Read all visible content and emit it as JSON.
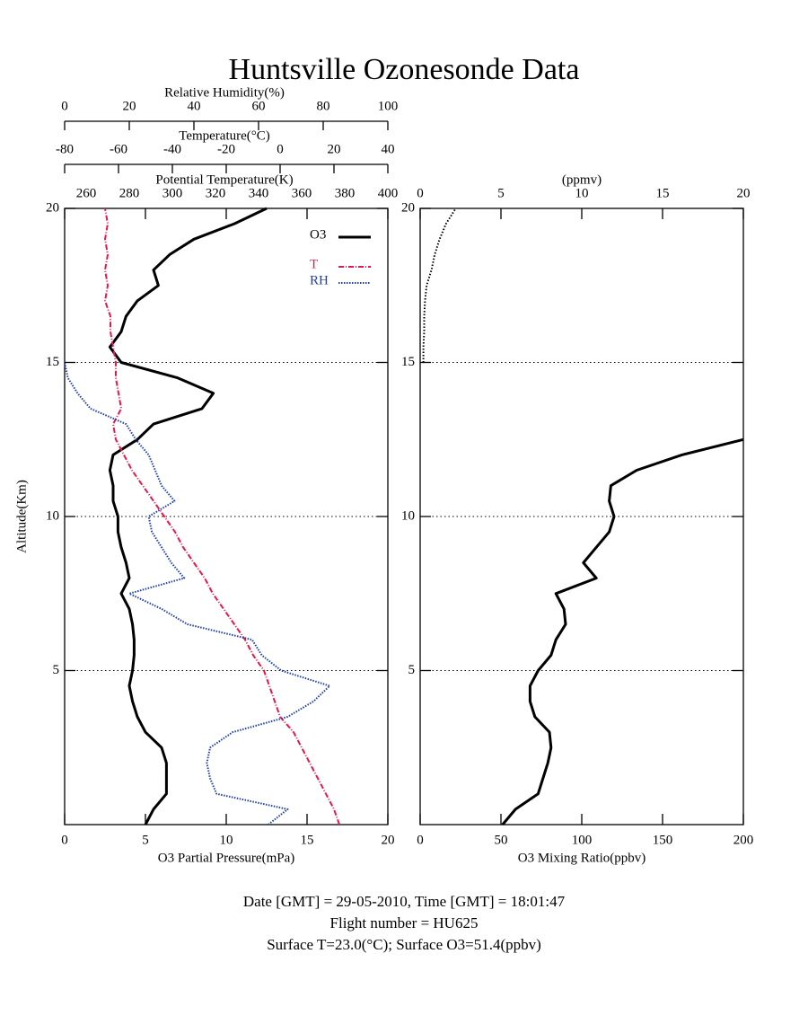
{
  "title": "Huntsville Ozonesonde Data",
  "footer": [
    "Date [GMT] = 29-05-2010,  Time [GMT] = 18:01:47",
    "Flight number = HU625",
    "Surface T=23.0(°C); Surface O3=51.4(ppbv)"
  ],
  "chart_data": [
    {
      "type": "line",
      "ylabel": "Altitude(Km)",
      "ylim": [
        0,
        20
      ],
      "yticks": [
        5,
        10,
        15,
        20
      ],
      "grid": true,
      "legend": "upper right",
      "y": [
        0,
        0.5,
        1,
        1.5,
        2,
        2.5,
        3,
        3.5,
        4,
        4.5,
        5,
        5.5,
        6,
        6.5,
        7,
        7.5,
        8,
        8.5,
        9,
        9.5,
        10,
        10.5,
        11,
        11.5,
        12,
        12.5,
        13,
        13.5,
        14,
        14.5,
        15,
        15.5,
        16,
        16.5,
        17,
        17.5,
        18,
        18.5,
        19,
        19.5,
        20
      ],
      "xlabel": "O3 Partial Pressure(mPa)",
      "xlim": [
        0,
        20
      ],
      "xticks": [
        0,
        5,
        10,
        15,
        20
      ],
      "x2label": "Relative Humidity(%)",
      "x2lim": [
        0,
        100
      ],
      "x2ticks": [
        0,
        20,
        40,
        60,
        80,
        100
      ],
      "x3label": "Temperature(°C)",
      "x3lim": [
        -80,
        40
      ],
      "x3ticks": [
        -80,
        -60,
        -40,
        -20,
        0,
        20,
        40
      ],
      "x4label": "Potential Temperature(K)",
      "x4lim": [
        250,
        400
      ],
      "x4ticks": [
        260,
        280,
        300,
        320,
        340,
        360,
        380,
        400
      ],
      "series": [
        {
          "name": "O3",
          "color": "#000000",
          "axis": "x",
          "values": [
            5.0,
            5.5,
            6.3,
            6.3,
            6.3,
            6.0,
            5.0,
            4.5,
            4.2,
            4.0,
            4.2,
            4.3,
            4.3,
            4.2,
            4.0,
            3.5,
            4.0,
            3.8,
            3.5,
            3.3,
            3.3,
            3.0,
            3.0,
            2.8,
            3.0,
            4.5,
            5.5,
            8.5,
            9.2,
            7.0,
            3.5,
            2.8,
            3.5,
            3.8,
            4.5,
            5.8,
            5.5,
            6.5,
            8.0,
            10.5,
            12.5
          ]
        },
        {
          "name": "T",
          "color": "#e8174a",
          "axis": "x3",
          "values": [
            22,
            20,
            17,
            14,
            11,
            8,
            5,
            0,
            -2,
            -4,
            -6,
            -10,
            -13,
            -17,
            -21,
            -25,
            -28,
            -32,
            -36,
            -39,
            -43,
            -47,
            -51,
            -55,
            -58,
            -61,
            -62,
            -59,
            -60,
            -61,
            -61,
            -62,
            -63,
            -63,
            -65,
            -64,
            -65,
            -64,
            -65,
            -64,
            -65
          ]
        },
        {
          "name": "RH",
          "color": "#1f3fae",
          "axis": "x2",
          "values": [
            63,
            69,
            47,
            45,
            44,
            45,
            52,
            69,
            77,
            82,
            67,
            61,
            58,
            38,
            30,
            20,
            37,
            33,
            30,
            27,
            26,
            34,
            30,
            28,
            26,
            22,
            19,
            8,
            4,
            1,
            0,
            null,
            null,
            null,
            null,
            null,
            null,
            null,
            null,
            null,
            null
          ]
        }
      ]
    },
    {
      "type": "line",
      "ylim": [
        0,
        20
      ],
      "yticks": [
        5,
        10,
        15,
        20
      ],
      "grid": true,
      "y": [
        0,
        0.5,
        1,
        1.5,
        2,
        2.5,
        3,
        3.5,
        4,
        4.5,
        5,
        5.5,
        6,
        6.5,
        7,
        7.5,
        8,
        8.5,
        9,
        9.5,
        10,
        10.5,
        11,
        11.5,
        12,
        12.5,
        13,
        13.5,
        14,
        14.5,
        15,
        15.5,
        16,
        16.5,
        17,
        17.5,
        18,
        18.5,
        19,
        19.5,
        20
      ],
      "xlabel": "O3 Mixing Ratio(ppbv)",
      "xlim": [
        0,
        200
      ],
      "xticks": [
        0,
        50,
        100,
        150,
        200
      ],
      "x2label": "(ppmv)",
      "x2lim": [
        0,
        20
      ],
      "x2ticks": [
        0,
        5,
        10,
        15,
        20
      ],
      "series": [
        {
          "color": "#000000",
          "axis": "x",
          "values": [
            51,
            59,
            73,
            76,
            79,
            81,
            80,
            71,
            68,
            68,
            73,
            81,
            84,
            90,
            89,
            84,
            109,
            101,
            109,
            117,
            120,
            117,
            118,
            134,
            162,
            200,
            null,
            null,
            null,
            null,
            null,
            null,
            null,
            null,
            null,
            null,
            null,
            null,
            null,
            null,
            null
          ]
        },
        {
          "color": "#000000",
          "axis": "x2",
          "values": [
            null,
            null,
            null,
            null,
            null,
            null,
            null,
            null,
            null,
            null,
            null,
            null,
            null,
            null,
            null,
            null,
            null,
            null,
            null,
            null,
            null,
            null,
            null,
            null,
            null,
            null,
            null,
            null,
            null,
            null,
            0.2,
            0.2,
            0.25,
            0.25,
            0.3,
            0.4,
            0.7,
            0.9,
            1.2,
            1.6,
            2.2
          ]
        }
      ]
    }
  ]
}
